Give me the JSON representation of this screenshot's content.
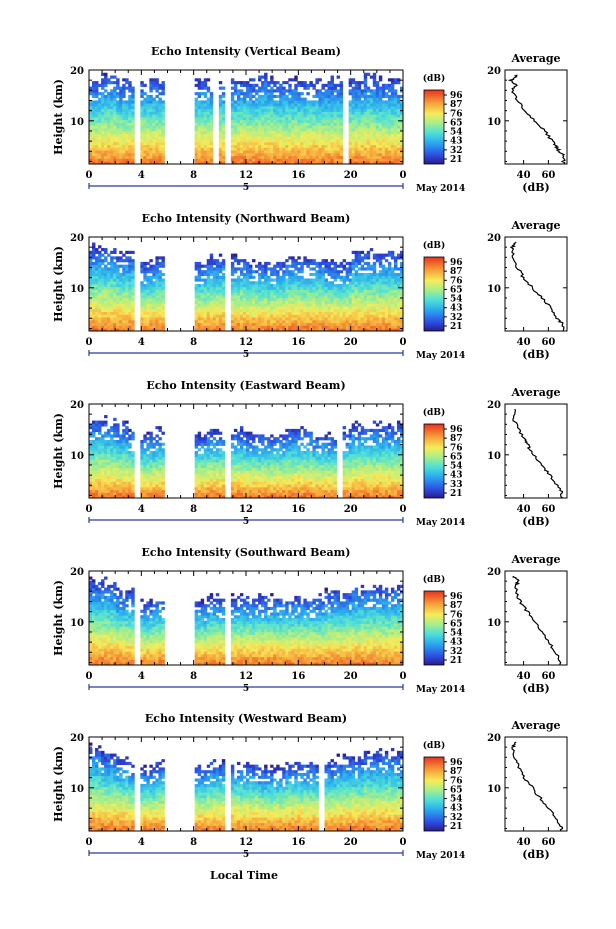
{
  "figure": {
    "xlabel": "Local Time",
    "date_label": "May 2014",
    "day_label": "5",
    "colorbar_unit": "(dB)",
    "avg_title": "Average",
    "avg_xlabel": "(dB)",
    "avg_xticks": [
      "40",
      "60"
    ],
    "height_label": "Height (km)",
    "yticks": [
      "10",
      "20"
    ],
    "xticks": [
      "0",
      "4",
      "8",
      "12",
      "16",
      "20",
      "0"
    ]
  },
  "chart_data": [
    {
      "type": "heatmap",
      "title": "Echo Intensity (Vertical Beam)",
      "xlabel": "Local Time",
      "ylabel": "Height (km)",
      "xlim": [
        0,
        24
      ],
      "ylim": [
        1.5,
        20
      ],
      "colorbar_ticks": [
        "96",
        "87",
        "76",
        "65",
        "54",
        "43",
        "32",
        "21"
      ],
      "colorbar_range": [
        21,
        96
      ],
      "top_height_km": [
        18,
        19,
        18,
        18,
        18,
        18,
        18,
        17,
        18,
        18,
        18,
        18,
        18,
        19,
        18,
        18,
        18,
        18,
        18,
        18,
        18,
        19,
        18,
        18
      ],
      "gaps_hours": [
        [
          3.4,
          3.9
        ],
        [
          5.7,
          8.1
        ],
        [
          9.4,
          9.9
        ],
        [
          10.4,
          10.9
        ],
        [
          19.4,
          19.8
        ]
      ],
      "average_profile": {
        "xlim": [
          25,
          75
        ],
        "height_km": [
          1.5,
          3,
          4,
          5,
          6,
          8,
          10,
          12,
          14,
          16,
          17,
          18,
          19
        ],
        "db": [
          72,
          73,
          69,
          66,
          63,
          57,
          49,
          41,
          35,
          31,
          34,
          30,
          35
        ]
      }
    },
    {
      "type": "heatmap",
      "title": "Echo Intensity (Northward Beam)",
      "xlabel": "Local Time",
      "ylabel": "Height (km)",
      "xlim": [
        0,
        24
      ],
      "ylim": [
        1.5,
        20
      ],
      "colorbar_ticks": [
        "96",
        "87",
        "76",
        "65",
        "54",
        "43",
        "32",
        "21"
      ],
      "colorbar_range": [
        21,
        96
      ],
      "top_height_km": [
        18,
        18,
        17,
        17,
        15,
        16,
        16,
        16,
        15,
        16,
        16,
        16,
        15,
        15,
        15,
        16,
        16,
        16,
        15,
        15,
        17,
        17,
        17,
        17
      ],
      "gaps_hours": [
        [
          3.4,
          3.9
        ],
        [
          5.7,
          8.1
        ],
        [
          10.4,
          10.9
        ]
      ],
      "average_profile": {
        "xlim": [
          25,
          75
        ],
        "height_km": [
          1.5,
          3,
          4,
          6,
          8,
          10,
          12,
          14,
          16,
          18,
          19
        ],
        "db": [
          72,
          71,
          67,
          62,
          55,
          47,
          40,
          35,
          32,
          31,
          34
        ]
      }
    },
    {
      "type": "heatmap",
      "title": "Echo Intensity (Eastward Beam)",
      "xlabel": "Local Time",
      "ylabel": "Height (km)",
      "xlim": [
        0,
        24
      ],
      "ylim": [
        1.5,
        20
      ],
      "colorbar_ticks": [
        "96",
        "87",
        "76",
        "65",
        "54",
        "43",
        "33",
        "21"
      ],
      "colorbar_range": [
        21,
        96
      ],
      "top_height_km": [
        17,
        17,
        16,
        15,
        14,
        15,
        14,
        14,
        14,
        15,
        15,
        15,
        14,
        14,
        14,
        15,
        15,
        14,
        14,
        15,
        16,
        16,
        16,
        16
      ],
      "gaps_hours": [
        [
          3.4,
          3.9
        ],
        [
          5.7,
          8.1
        ],
        [
          10.4,
          10.9
        ],
        [
          19.0,
          19.4
        ]
      ],
      "average_profile": {
        "xlim": [
          25,
          75
        ],
        "height_km": [
          1.5,
          3,
          5,
          7,
          9,
          11,
          12,
          13,
          15,
          17,
          19
        ],
        "db": [
          71,
          70,
          64,
          58,
          51,
          45,
          44,
          41,
          36,
          32,
          33
        ]
      }
    },
    {
      "type": "heatmap",
      "title": "Echo Intensity (Southward Beam)",
      "xlabel": "Local Time",
      "ylabel": "Height (km)",
      "xlim": [
        0,
        24
      ],
      "ylim": [
        1.5,
        20
      ],
      "colorbar_ticks": [
        "96",
        "87",
        "76",
        "65",
        "54",
        "43",
        "32",
        "21"
      ],
      "colorbar_range": [
        21,
        96
      ],
      "top_height_km": [
        18,
        18,
        16,
        16,
        14,
        15,
        15,
        15,
        14,
        15,
        15,
        15,
        15,
        15,
        15,
        15,
        15,
        15,
        16,
        16,
        17,
        17,
        17,
        17
      ],
      "gaps_hours": [
        [
          3.4,
          3.9
        ],
        [
          5.7,
          8.1
        ],
        [
          10.4,
          10.9
        ]
      ],
      "average_profile": {
        "xlim": [
          25,
          75
        ],
        "height_km": [
          1.5,
          3,
          5,
          7,
          9,
          11,
          13,
          15,
          17,
          18,
          19
        ],
        "db": [
          70,
          69,
          63,
          58,
          52,
          46,
          40,
          35,
          33,
          36,
          32
        ]
      }
    },
    {
      "type": "heatmap",
      "title": "Echo Intensity (Westward Beam)",
      "xlabel": "Local Time",
      "ylabel": "Height (km)",
      "xlim": [
        0,
        24
      ],
      "ylim": [
        1.5,
        20
      ],
      "colorbar_ticks": [
        "96",
        "87",
        "76",
        "65",
        "54",
        "43",
        "32",
        "21"
      ],
      "colorbar_range": [
        21,
        96
      ],
      "top_height_km": [
        18,
        17,
        16,
        15,
        14,
        15,
        15,
        15,
        14,
        15,
        15,
        15,
        15,
        14,
        14,
        15,
        15,
        15,
        15,
        16,
        16,
        17,
        17,
        17
      ],
      "gaps_hours": [
        [
          3.4,
          3.9
        ],
        [
          5.7,
          8.1
        ],
        [
          10.4,
          10.9
        ],
        [
          17.6,
          18.0
        ]
      ],
      "average_profile": {
        "xlim": [
          25,
          75
        ],
        "height_km": [
          1.5,
          3,
          5,
          7,
          9,
          11,
          12,
          14,
          16,
          18,
          19
        ],
        "db": [
          71,
          69,
          63,
          57,
          50,
          44,
          40,
          36,
          33,
          31,
          34
        ]
      }
    }
  ]
}
